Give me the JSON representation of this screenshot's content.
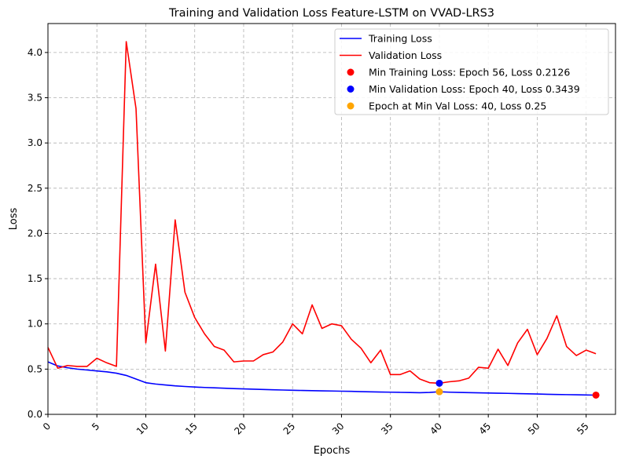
{
  "chart_data": {
    "type": "line",
    "title": "Training and Validation Loss Feature-LSTM on VVAD-LRS3",
    "xlabel": "Epochs",
    "ylabel": "Loss",
    "xlim": [
      0,
      58
    ],
    "ylim": [
      0,
      4.32
    ],
    "x_ticks": [
      0,
      5,
      10,
      15,
      20,
      25,
      30,
      35,
      40,
      45,
      50,
      55
    ],
    "y_ticks": [
      0.0,
      0.5,
      1.0,
      1.5,
      2.0,
      2.5,
      3.0,
      3.5,
      4.0
    ],
    "y_tick_labels": [
      "0.0",
      "0.5",
      "1.0",
      "1.5",
      "2.0",
      "2.5",
      "3.0",
      "3.5",
      "4.0"
    ],
    "grid": true,
    "legend_position": "top-right",
    "series": [
      {
        "name": "Training Loss",
        "color": "#0000ff",
        "x": [
          0,
          1,
          2,
          3,
          4,
          5,
          6,
          7,
          8,
          9,
          10,
          11,
          12,
          13,
          14,
          15,
          16,
          17,
          18,
          19,
          20,
          21,
          22,
          23,
          24,
          25,
          26,
          27,
          28,
          29,
          30,
          31,
          32,
          33,
          34,
          35,
          36,
          37,
          38,
          39,
          40,
          41,
          42,
          43,
          44,
          45,
          46,
          47,
          48,
          49,
          50,
          51,
          52,
          53,
          54,
          55,
          56
        ],
        "y": [
          0.58,
          0.535,
          0.515,
          0.5,
          0.49,
          0.48,
          0.47,
          0.455,
          0.43,
          0.39,
          0.35,
          0.335,
          0.325,
          0.315,
          0.308,
          0.302,
          0.297,
          0.293,
          0.289,
          0.285,
          0.281,
          0.278,
          0.275,
          0.272,
          0.269,
          0.266,
          0.264,
          0.262,
          0.26,
          0.258,
          0.256,
          0.254,
          0.251,
          0.249,
          0.247,
          0.245,
          0.243,
          0.241,
          0.239,
          0.242,
          0.25,
          0.245,
          0.242,
          0.24,
          0.238,
          0.236,
          0.234,
          0.232,
          0.229,
          0.227,
          0.225,
          0.222,
          0.22,
          0.218,
          0.216,
          0.214,
          0.2126
        ]
      },
      {
        "name": "Validation Loss",
        "color": "#ff0000",
        "x": [
          0,
          1,
          2,
          3,
          4,
          5,
          6,
          7,
          8,
          9,
          10,
          11,
          12,
          13,
          14,
          15,
          16,
          17,
          18,
          19,
          20,
          21,
          22,
          23,
          24,
          25,
          26,
          27,
          28,
          29,
          30,
          31,
          32,
          33,
          34,
          35,
          36,
          37,
          38,
          39,
          40,
          41,
          42,
          43,
          44,
          45,
          46,
          47,
          48,
          49,
          50,
          51,
          52,
          53,
          54,
          55,
          56
        ],
        "y": [
          0.74,
          0.51,
          0.54,
          0.53,
          0.53,
          0.62,
          0.57,
          0.53,
          4.12,
          3.38,
          0.79,
          1.66,
          0.7,
          2.15,
          1.35,
          1.07,
          0.89,
          0.75,
          0.71,
          0.58,
          0.59,
          0.59,
          0.66,
          0.69,
          0.8,
          1.0,
          0.89,
          1.21,
          0.95,
          1.0,
          0.98,
          0.83,
          0.73,
          0.57,
          0.71,
          0.44,
          0.44,
          0.48,
          0.39,
          0.35,
          0.3439,
          0.36,
          0.37,
          0.4,
          0.52,
          0.51,
          0.72,
          0.54,
          0.79,
          0.94,
          0.66,
          0.84,
          1.09,
          0.75,
          0.65,
          0.71,
          0.67
        ]
      }
    ],
    "markers": [
      {
        "name": "Min Training Loss: Epoch 56, Loss 0.2126",
        "color": "#ff0000",
        "x": 56,
        "y": 0.2126
      },
      {
        "name": "Min Validation Loss: Epoch 40, Loss 0.3439",
        "color": "#0000ff",
        "x": 40,
        "y": 0.3439
      },
      {
        "name": "Epoch at Min Val Loss: 40, Loss 0.25",
        "color": "#ffa500",
        "x": 40,
        "y": 0.25
      }
    ]
  }
}
